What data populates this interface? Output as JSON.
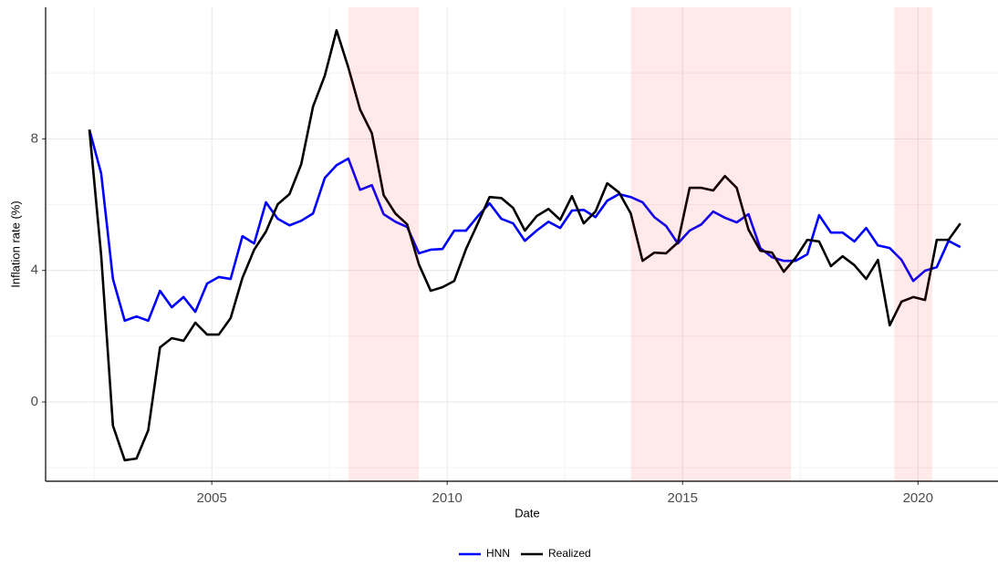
{
  "chart_data": {
    "type": "line",
    "x_label": "Date",
    "y_label": "Inflation rate (%)",
    "x": [
      2002.4,
      2002.65,
      2002.9,
      2003.15,
      2003.4,
      2003.65,
      2003.9,
      2004.15,
      2004.4,
      2004.65,
      2004.9,
      2005.15,
      2005.4,
      2005.65,
      2005.9,
      2006.15,
      2006.4,
      2006.65,
      2006.9,
      2007.15,
      2007.4,
      2007.65,
      2007.9,
      2008.15,
      2008.4,
      2008.65,
      2008.9,
      2009.15,
      2009.4,
      2009.65,
      2009.9,
      2010.15,
      2010.4,
      2010.65,
      2010.9,
      2011.15,
      2011.4,
      2011.65,
      2011.9,
      2012.15,
      2012.4,
      2012.65,
      2012.9,
      2013.15,
      2013.4,
      2013.65,
      2013.9,
      2014.15,
      2014.4,
      2014.65,
      2014.9,
      2015.15,
      2015.4,
      2015.65,
      2015.9,
      2016.15,
      2016.4,
      2016.65,
      2016.9,
      2017.15,
      2017.4,
      2017.65,
      2017.9,
      2018.15,
      2018.4,
      2018.65,
      2018.9,
      2019.15,
      2019.4,
      2019.65,
      2019.9,
      2020.15,
      2020.4,
      2020.65,
      2020.9
    ],
    "series": [
      {
        "name": "HNN",
        "color": "#0000ff",
        "values": [
          8.28,
          6.95,
          3.74,
          2.47,
          2.6,
          2.47,
          3.38,
          2.88,
          3.19,
          2.74,
          3.6,
          3.8,
          3.74,
          5.04,
          4.82,
          6.07,
          5.57,
          5.37,
          5.51,
          5.73,
          6.81,
          7.2,
          7.4,
          6.45,
          6.59,
          5.71,
          5.48,
          5.32,
          4.52,
          4.63,
          4.65,
          5.21,
          5.21,
          5.65,
          6.04,
          5.57,
          5.43,
          4.9,
          5.21,
          5.48,
          5.29,
          5.82,
          5.84,
          5.62,
          6.12,
          6.32,
          6.23,
          6.07,
          5.62,
          5.35,
          4.82,
          5.21,
          5.4,
          5.79,
          5.6,
          5.46,
          5.71,
          4.68,
          4.4,
          4.29,
          4.29,
          4.49,
          5.68,
          5.15,
          5.15,
          4.88,
          5.29,
          4.76,
          4.68,
          4.32,
          3.68,
          3.99,
          4.1,
          4.9,
          4.71
        ]
      },
      {
        "name": "Realized",
        "color": "#000000",
        "values": [
          8.28,
          4.46,
          -0.72,
          -1.77,
          -1.72,
          -0.86,
          1.66,
          1.94,
          1.86,
          2.41,
          2.05,
          2.05,
          2.55,
          3.77,
          4.63,
          5.18,
          6.01,
          6.32,
          7.23,
          8.98,
          9.92,
          11.3,
          10.17,
          8.89,
          8.17,
          6.29,
          5.73,
          5.4,
          4.18,
          3.38,
          3.49,
          3.68,
          4.65,
          5.43,
          6.23,
          6.2,
          5.9,
          5.21,
          5.65,
          5.87,
          5.54,
          6.26,
          5.43,
          5.79,
          6.65,
          6.37,
          5.73,
          4.29,
          4.54,
          4.52,
          4.85,
          6.51,
          6.51,
          6.43,
          6.87,
          6.51,
          5.24,
          4.6,
          4.54,
          3.96,
          4.38,
          4.93,
          4.88,
          4.13,
          4.43,
          4.16,
          3.74,
          4.32,
          2.33,
          3.05,
          3.19,
          3.1,
          4.93,
          4.93,
          5.43
        ]
      }
    ],
    "shaded_regions": [
      [
        2007.9,
        2009.4
      ],
      [
        2013.9,
        2017.3
      ],
      [
        2019.5,
        2020.3
      ]
    ],
    "shade_color": "#ff0000",
    "xlim": [
      2001.47,
      2021.7
    ],
    "xticks": [
      2005,
      2010,
      2015,
      2020
    ],
    "xticks_minor": [
      2002.5,
      2007.5,
      2012.5,
      2017.5
    ],
    "ylim": [
      -2.41,
      12
    ],
    "yticks": [
      0,
      4,
      8
    ],
    "yticks_minor": [
      -2,
      2,
      6,
      10
    ],
    "grid": true,
    "legend": "bottom"
  }
}
